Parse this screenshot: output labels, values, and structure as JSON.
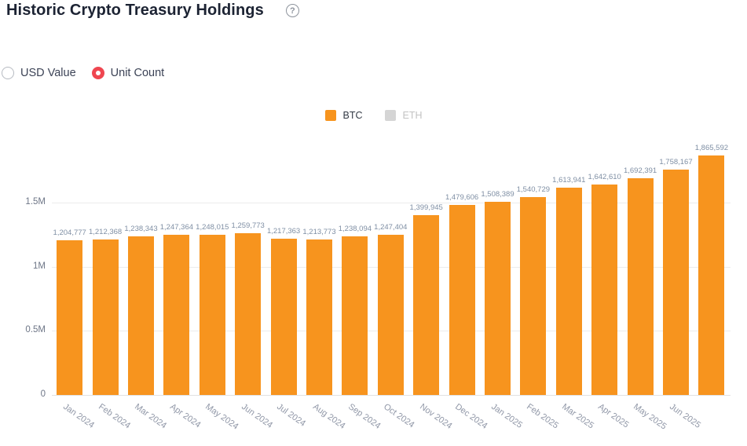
{
  "header": {
    "title": "Historic Crypto Treasury Holdings",
    "help_icon_glyph": "?"
  },
  "controls": {
    "options": [
      {
        "label": "USD Value",
        "selected": false
      },
      {
        "label": "Unit Count",
        "selected": true
      }
    ]
  },
  "legend": {
    "items": [
      {
        "label": "BTC",
        "color": "#f7941e",
        "active": true
      },
      {
        "label": "ETH",
        "color": "#d5d5d5",
        "active": false
      }
    ]
  },
  "chart_data": {
    "type": "bar",
    "title": "Historic Crypto Treasury Holdings",
    "categories": [
      "Jan 2024",
      "Feb 2024",
      "Mar 2024",
      "Apr 2024",
      "May 2024",
      "Jun 2024",
      "Jul 2024",
      "Aug 2024",
      "Sep 2024",
      "Oct 2024",
      "Nov 2024",
      "Dec 2024",
      "Jan 2025",
      "Feb 2025",
      "Mar 2025",
      "Apr 2025",
      "May 2025",
      "Jun 2025",
      ""
    ],
    "series": [
      {
        "name": "BTC",
        "color": "#f7941e",
        "values": [
          1204777,
          1212368,
          1238343,
          1247364,
          1248015,
          1259773,
          1217363,
          1213773,
          1238094,
          1247404,
          1399945,
          1479606,
          1508389,
          1540729,
          1613941,
          1642610,
          1692391,
          1758167,
          1865592
        ]
      },
      {
        "name": "ETH",
        "color": "#d5d5d5",
        "values": [],
        "note_visible_state": "deselected in legend, no bars rendered"
      }
    ],
    "data_labels_visible": true,
    "xlabel": "",
    "ylabel": "",
    "y_ticks": [
      {
        "label": "0",
        "value": 0
      },
      {
        "label": "0.5M",
        "value": 500000
      },
      {
        "label": "1M",
        "value": 1000000
      },
      {
        "label": "1.5M",
        "value": 1500000
      }
    ],
    "ylim": [
      0,
      1875000
    ],
    "grid": true,
    "legend_position": "top-center"
  }
}
